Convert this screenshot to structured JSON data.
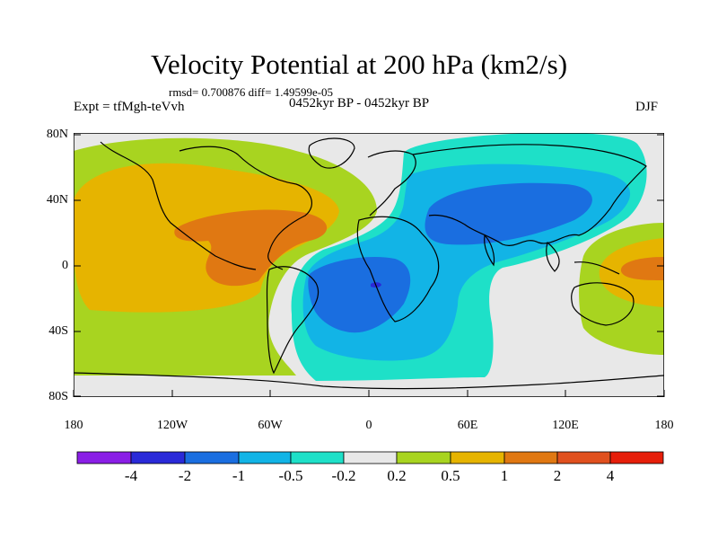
{
  "title": "Velocity Potential at 200 hPa (km2/s)",
  "stats": "rmsd= 0.700876 diff= 1.49599e-05",
  "experiment": "Expt = tfMgh-teVvh",
  "period": "0452kyr BP - 0452kyr BP",
  "season": "DJF",
  "map": {
    "lat_ticks": [
      "80N",
      "40N",
      "0",
      "40S",
      "80S"
    ],
    "lon_ticks": [
      "180",
      "120W",
      "60W",
      "0",
      "60E",
      "120E",
      "180"
    ],
    "background_color": "#e8e8e8"
  },
  "colorbar": {
    "labels": [
      "-4",
      "-2",
      "-1",
      "-0.5",
      "-0.2",
      "0.2",
      "0.5",
      "1",
      "2",
      "4"
    ],
    "colors": [
      "#8a1ee6",
      "#2a2ad8",
      "#1a6ee0",
      "#12b4e6",
      "#1ee0c8",
      "#e8e8e8",
      "#a8d420",
      "#e6b400",
      "#e07812",
      "#e0501e",
      "#e61e0a"
    ]
  }
}
